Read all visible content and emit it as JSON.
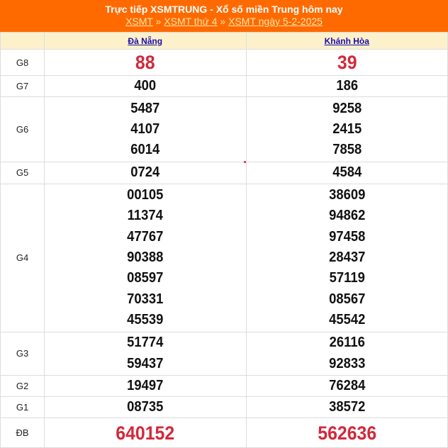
{
  "header": {
    "title": "Trực tiếp XSMTRUNG - Xổ số miền Trung hôm nay",
    "breadcrumb": [
      "XSMT",
      "XSMT thứ 4",
      "XSMT ngày 5-2-2025"
    ],
    "separator": "»"
  },
  "columns": [
    "Đà Nẵng",
    "Khánh Hòa"
  ],
  "colors": {
    "header": "#ff6a00",
    "prize_highlight": "#d3283a",
    "column_header_bg": "#fdf1cb"
  },
  "prizes": [
    {
      "label": "G8",
      "big": true,
      "values": [
        [
          "88"
        ],
        [
          "39"
        ]
      ]
    },
    {
      "label": "G7",
      "values": [
        [
          "400"
        ],
        [
          "186"
        ]
      ]
    },
    {
      "label": "G6",
      "values": [
        [
          "5487",
          "4107",
          "6014"
        ],
        [
          "9258",
          "2415",
          "7858"
        ]
      ]
    },
    {
      "label": "G5",
      "values": [
        [
          "0724"
        ],
        [
          "4584"
        ]
      ]
    },
    {
      "label": "G4",
      "values": [
        [
          "00105",
          "11374",
          "47767",
          "90388",
          "08597",
          "70331",
          "45539"
        ],
        [
          "38609",
          "94862",
          "97458",
          "28437",
          "57119",
          "08567",
          "45542"
        ]
      ]
    },
    {
      "label": "G3",
      "values": [
        [
          "51774",
          "59437"
        ],
        [
          "26116",
          "92833"
        ]
      ]
    },
    {
      "label": "G2",
      "values": [
        [
          "19497"
        ],
        [
          "76284"
        ]
      ]
    },
    {
      "label": "G1",
      "values": [
        [
          "08735"
        ],
        [
          "38572"
        ]
      ]
    },
    {
      "label": "ĐB",
      "big": true,
      "values": [
        [
          "640152"
        ],
        [
          "562636"
        ]
      ]
    }
  ]
}
